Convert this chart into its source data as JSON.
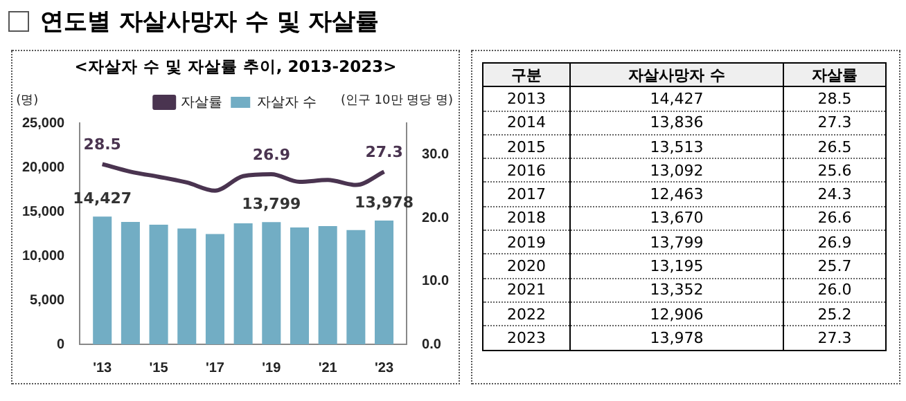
{
  "chart_data": [
    {
      "type": "bar",
      "title": "연도별 자살사망자 수 및 자살률",
      "subtitle": "<자살자 수 및 자살률 추이, 2013-2023>",
      "ylabel": "(명)",
      "y2label": "(인구 10만 명당 명)",
      "x": [
        2013,
        2014,
        2015,
        2016,
        2017,
        2018,
        2019,
        2020,
        2021,
        2022,
        2023
      ],
      "xlim": [
        2012.2,
        2023.8
      ],
      "xticks": [
        {
          "value": 2013,
          "label": "'13"
        },
        {
          "value": 2015,
          "label": "'15"
        },
        {
          "value": 2017,
          "label": "'17"
        },
        {
          "value": 2019,
          "label": "'19"
        },
        {
          "value": 2021,
          "label": "'21"
        },
        {
          "value": 2023,
          "label": "'23"
        }
      ],
      "series": [
        {
          "name": "자살자 수",
          "color": "#72adc4",
          "values": [
            14427,
            13836,
            13513,
            13092,
            12463,
            13670,
            13799,
            13195,
            13352,
            12906,
            13978
          ],
          "value_labels": [
            "14,427",
            null,
            null,
            null,
            null,
            null,
            "13,799",
            null,
            null,
            null,
            "13,978"
          ]
        },
        {
          "name": "자살률",
          "type": "line",
          "axis": "y2",
          "color": "#4a3450",
          "values": [
            28.5,
            27.3,
            26.5,
            25.6,
            24.3,
            26.6,
            26.9,
            25.7,
            26.0,
            25.2,
            27.3
          ],
          "value_labels": [
            "28.5",
            null,
            null,
            null,
            null,
            null,
            "26.9",
            null,
            null,
            null,
            "27.3"
          ]
        }
      ],
      "ylim": [
        0,
        25000
      ],
      "yticks": [
        {
          "value": 0,
          "label": "0"
        },
        {
          "value": 5000,
          "label": "5,000"
        },
        {
          "value": 10000,
          "label": "10,000"
        },
        {
          "value": 15000,
          "label": "15,000"
        },
        {
          "value": 20000,
          "label": "20,000"
        },
        {
          "value": 25000,
          "label": "25,000"
        }
      ],
      "y2lim": [
        0,
        35
      ],
      "y2ticks": [
        {
          "value": 0,
          "label": "0.0"
        },
        {
          "value": 10,
          "label": "10.0"
        },
        {
          "value": 20,
          "label": "20.0"
        },
        {
          "value": 30,
          "label": "30.0"
        }
      ],
      "grid": false,
      "legend": "top",
      "marker": "none",
      "line_style": "solid"
    },
    {
      "type": "heatmap",
      "ylabel": "구분",
      "categories": [
        "자살사망자 수",
        "자살률"
      ],
      "y_categories": [
        "2013",
        "2014",
        "2015",
        "2016",
        "2017",
        "2018",
        "2019",
        "2020",
        "2021",
        "2022",
        "2023"
      ],
      "cells": [
        [
          14427,
          28.5
        ],
        [
          13836,
          27.3
        ],
        [
          13513,
          26.5
        ],
        [
          13092,
          25.6
        ],
        [
          12463,
          24.3
        ],
        [
          13670,
          26.6
        ],
        [
          13799,
          26.9
        ],
        [
          13195,
          25.7
        ],
        [
          13352,
          26.0
        ],
        [
          12906,
          25.2
        ],
        [
          13978,
          27.3
        ]
      ],
      "cell_labels": [
        [
          "14,427",
          "28.5"
        ],
        [
          "13,836",
          "27.3"
        ],
        [
          "13,513",
          "26.5"
        ],
        [
          "13,092",
          "25.6"
        ],
        [
          "12,463",
          "24.3"
        ],
        [
          "13,670",
          "26.6"
        ],
        [
          "13,799",
          "26.9"
        ],
        [
          "13,195",
          "25.7"
        ],
        [
          "13,352",
          "26.0"
        ],
        [
          "12,906",
          "25.2"
        ],
        [
          "13,978",
          "27.3"
        ]
      ]
    }
  ]
}
